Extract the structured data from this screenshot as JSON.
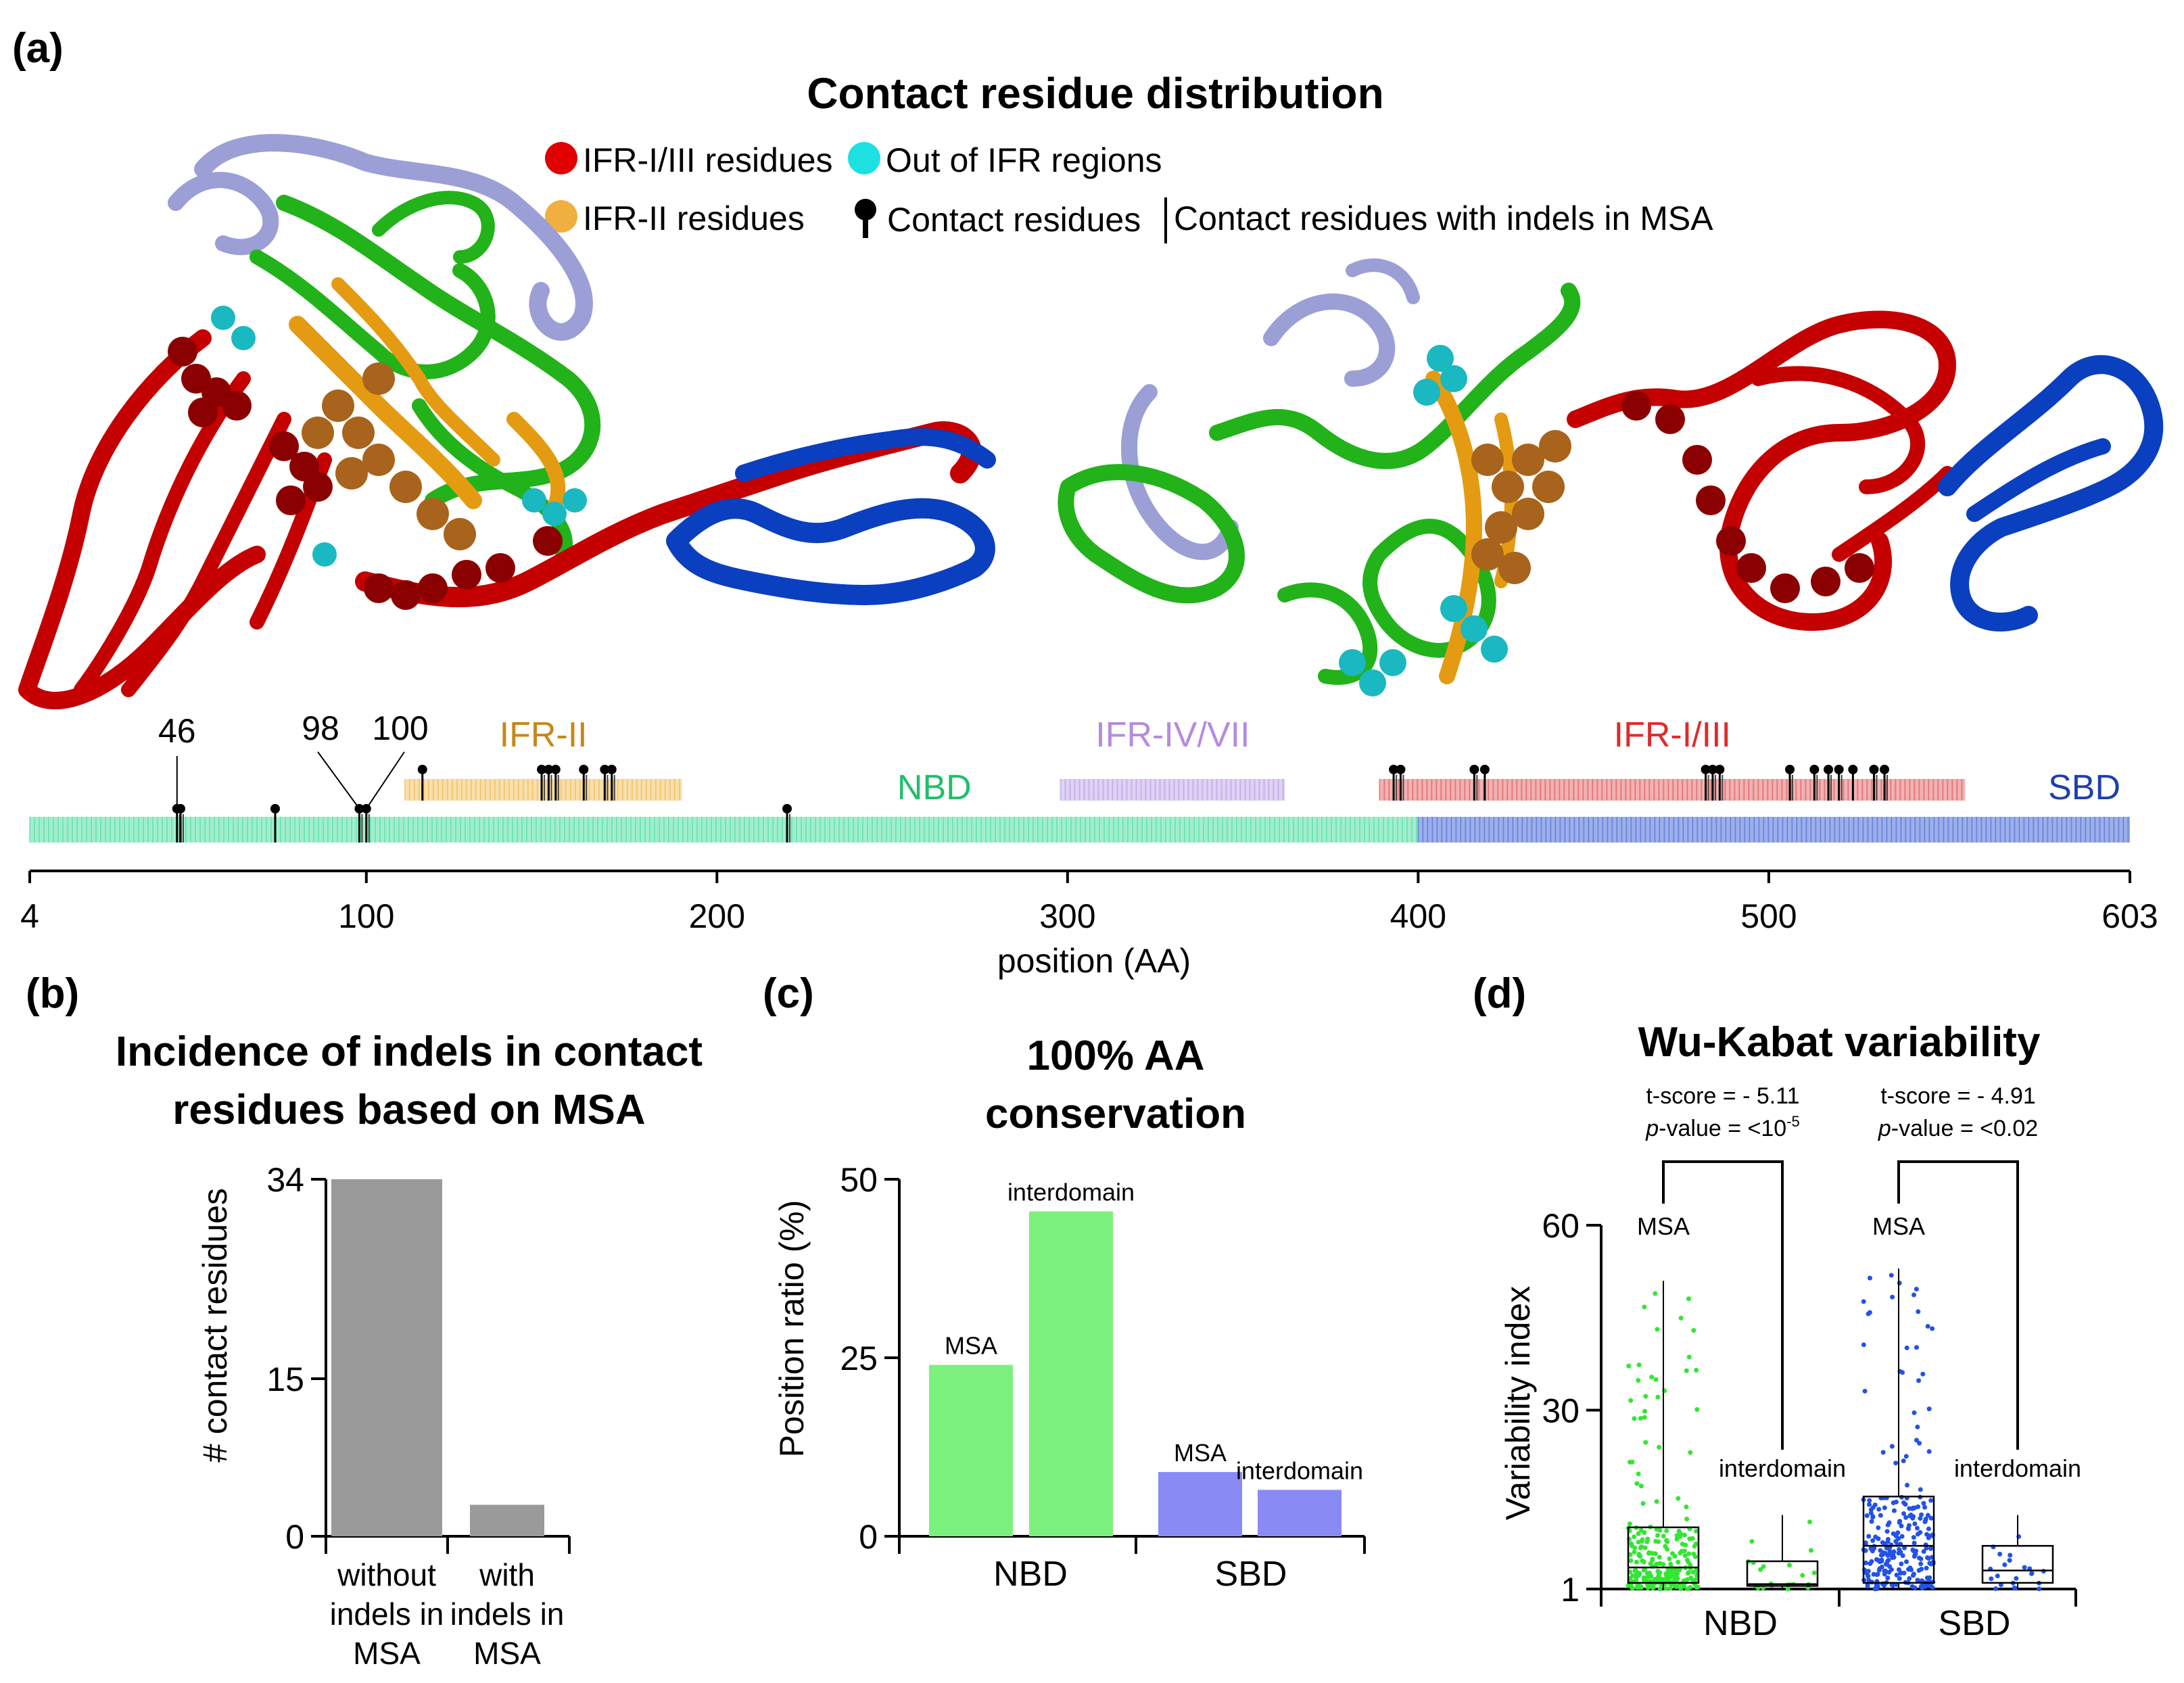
{
  "panels": {
    "a": {
      "label": "(a)",
      "title": "Contact residue distribution",
      "legend": {
        "red": "IFR-I/III residues",
        "cyan": "Out of IFR regions",
        "orange": "IFR-II residues",
        "contact": "Contact residues",
        "indel": "Contact residues with indels in MSA"
      },
      "callouts": [
        "46",
        "98",
        "100"
      ],
      "xlabel": "position (AA)"
    },
    "b": {
      "label": "(b)"
    },
    "c": {
      "label": "(c)"
    },
    "d": {
      "label": "(d)"
    }
  },
  "colors": {
    "red": "#c40000",
    "darkred": "#8b0000",
    "blue": "#0a3fbf",
    "green": "#22b21a",
    "lavender": "#9b9fd6",
    "orange": "#e49b12",
    "brown": "#a8641c",
    "cyan": "#1ab8c0",
    "nbd_bar": "#7cf07c",
    "sbd_bar": "#8a8af5",
    "gray_bar": "#9a9a9a",
    "ifr2": "#f2b94a",
    "ifr47": "#b79ce6",
    "ifr13": "#e05555",
    "nbd_track": "#54e0a4",
    "sbd_track": "#4f6fd8"
  },
  "chart_data": [
    {
      "id": "a-track",
      "type": "track",
      "xlim": [
        4,
        603
      ],
      "ticks": [
        4,
        100,
        200,
        300,
        400,
        500,
        603
      ],
      "xlabel": "position (AA)",
      "domains": [
        {
          "name": "NBD",
          "start": 4,
          "end": 400
        },
        {
          "name": "SBD",
          "start": 400,
          "end": 603
        }
      ],
      "regions": [
        {
          "name": "IFR-II",
          "start": 111,
          "end": 190
        },
        {
          "name": "IFR-IV/VII",
          "start": 298,
          "end": 362
        },
        {
          "name": "IFR-I/III",
          "start": 389,
          "end": 556
        }
      ],
      "contacts": [
        {
          "pos": 46,
          "indel": true
        },
        {
          "pos": 47,
          "indel": true
        },
        {
          "pos": 74,
          "indel": false
        },
        {
          "pos": 98,
          "indel": true
        },
        {
          "pos": 100,
          "indel": true
        },
        {
          "pos": 116,
          "indel": false
        },
        {
          "pos": 150,
          "indel": true
        },
        {
          "pos": 152,
          "indel": true
        },
        {
          "pos": 154,
          "indel": true
        },
        {
          "pos": 162,
          "indel": true
        },
        {
          "pos": 168,
          "indel": true
        },
        {
          "pos": 170,
          "indel": true
        },
        {
          "pos": 220,
          "indel": true
        },
        {
          "pos": 393,
          "indel": true
        },
        {
          "pos": 395,
          "indel": true
        },
        {
          "pos": 416,
          "indel": true
        },
        {
          "pos": 419,
          "indel": false
        },
        {
          "pos": 482,
          "indel": true
        },
        {
          "pos": 484,
          "indel": true
        },
        {
          "pos": 486,
          "indel": true
        },
        {
          "pos": 506,
          "indel": true
        },
        {
          "pos": 513,
          "indel": true
        },
        {
          "pos": 517,
          "indel": true
        },
        {
          "pos": 520,
          "indel": true
        },
        {
          "pos": 524,
          "indel": false
        },
        {
          "pos": 530,
          "indel": true
        },
        {
          "pos": 533,
          "indel": true
        }
      ]
    },
    {
      "id": "b",
      "type": "bar",
      "title": "Incidence of indels in contact residues based on MSA",
      "ylabel": "# contact residues",
      "ylim": [
        0,
        34
      ],
      "yticks": [
        0,
        15,
        34
      ],
      "categories": [
        "without indels in MSA",
        "with indels in MSA"
      ],
      "values": [
        34,
        3
      ]
    },
    {
      "id": "c",
      "type": "bar",
      "title": "100% AA conservation",
      "ylabel": "Position ratio (%)",
      "ylim": [
        0,
        50
      ],
      "yticks": [
        0,
        25,
        50
      ],
      "groups": [
        "NBD",
        "SBD"
      ],
      "series": [
        {
          "name": "MSA",
          "values": [
            24,
            9
          ]
        },
        {
          "name": "interdomain",
          "values": [
            45.5,
            6.5
          ]
        }
      ]
    },
    {
      "id": "d",
      "type": "box",
      "title": "Wu-Kabat variability",
      "ylabel": "Variability index",
      "ylim": [
        1,
        60
      ],
      "yticks": [
        1,
        30,
        60
      ],
      "groups": [
        "NBD",
        "SBD"
      ],
      "boxes": [
        {
          "group": "NBD",
          "name": "MSA",
          "min": 1,
          "q1": 2,
          "median": 4.5,
          "q3": 11,
          "max": 51
        },
        {
          "group": "NBD",
          "name": "interdomain",
          "min": 1,
          "q1": 1.5,
          "median": 1.8,
          "q3": 5.5,
          "max": 13
        },
        {
          "group": "SBD",
          "name": "MSA",
          "min": 1,
          "q1": 2,
          "median": 8,
          "q3": 16,
          "max": 53
        },
        {
          "group": "SBD",
          "name": "interdomain",
          "min": 1,
          "q1": 2,
          "median": 4,
          "q3": 8,
          "max": 13
        }
      ],
      "tests": [
        {
          "group": "NBD",
          "t_score": "t-score = - 5.11",
          "p_value": "<10-5"
        },
        {
          "group": "SBD",
          "t_score": "t-score = - 4.91",
          "p_value": "<0.02"
        }
      ]
    }
  ]
}
